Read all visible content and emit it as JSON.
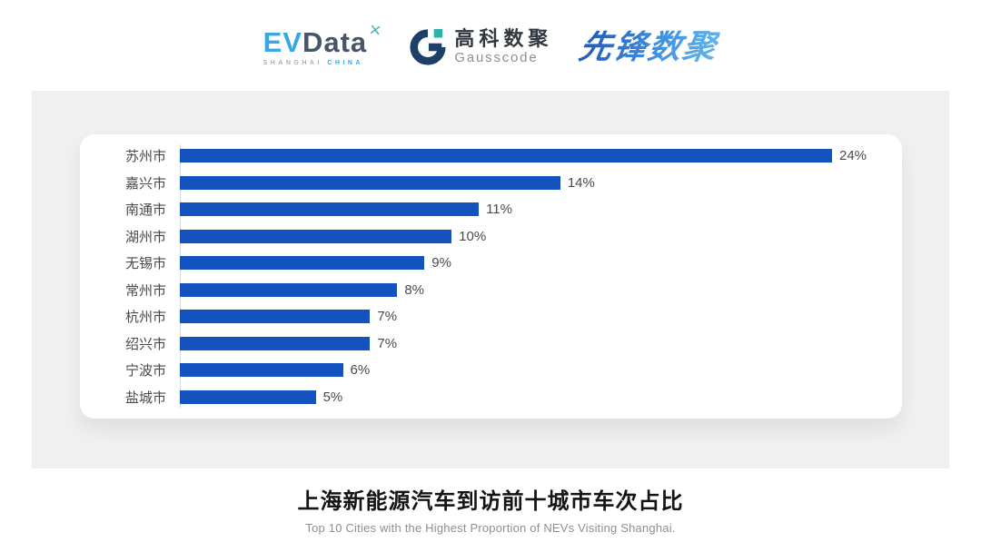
{
  "header": {
    "evdata": {
      "ev": "EV",
      "data": "Data",
      "mark": "✕",
      "tagline_left": "SHANGHAI",
      "tagline_right": "CHINA"
    },
    "gausscode": {
      "cn": "高科数聚",
      "en": "Gausscode"
    },
    "xianfeng": {
      "text": "先锋数聚"
    }
  },
  "chart_data": {
    "type": "bar",
    "orientation": "horizontal",
    "title": "上海新能源汽车到访前十城市车次占比",
    "subtitle": "Top 10 Cities with the Highest Proportion of  NEVs Visiting Shanghai.",
    "categories": [
      "苏州市",
      "嘉兴市",
      "南通市",
      "湖州市",
      "无锡市",
      "常州市",
      "杭州市",
      "绍兴市",
      "宁波市",
      "盐城市"
    ],
    "values": [
      24,
      14,
      11,
      10,
      9,
      8,
      7,
      7,
      6,
      5
    ],
    "value_labels": [
      "24%",
      "14%",
      "11%",
      "10%",
      "9%",
      "8%",
      "7%",
      "7%",
      "6%",
      "5%"
    ],
    "unit": "%",
    "xlim": [
      0,
      24
    ],
    "grid": false,
    "legend": false,
    "bar_color": "#1452c0",
    "label_color": "#4a4a4a"
  },
  "colors": {
    "panel_bg": "#f0f0f0",
    "card_bg": "#ffffff",
    "bar_blue": "#1452c0",
    "evdata_blue": "#38a8e0",
    "evdata_slate": "#47546a",
    "gauss_navy": "#1d3f68",
    "gauss_teal": "#2fb3a8",
    "xianfeng_blue": "#2f7ad4"
  }
}
